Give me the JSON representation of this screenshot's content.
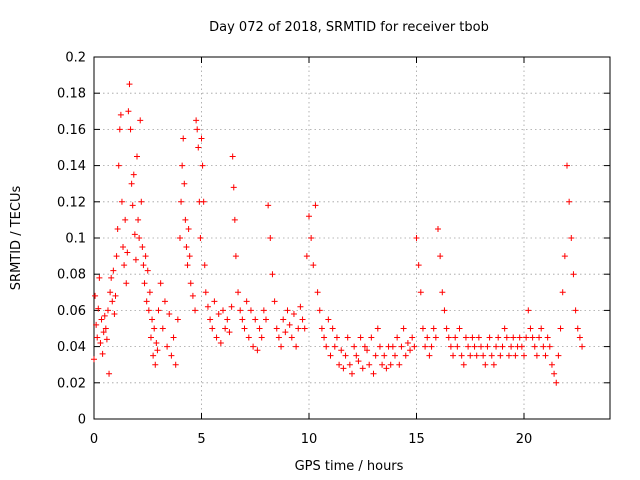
{
  "chart_data": {
    "type": "scatter",
    "title": "Day 072 of 2018, SRMTID for receiver tbob",
    "xlabel": "GPS time / hours",
    "ylabel": "SRMTID / TECUs",
    "xlim": [
      0,
      24
    ],
    "ylim": [
      0,
      0.2
    ],
    "xticks": [
      0,
      5,
      10,
      15,
      20
    ],
    "xtick_labels": [
      "0",
      "5",
      "10",
      "15",
      "20"
    ],
    "yticks": [
      0,
      0.02,
      0.04,
      0.06,
      0.08,
      0.1,
      0.12,
      0.14,
      0.16,
      0.18,
      0.2
    ],
    "ytick_labels": [
      "0",
      "0.02",
      "0.04",
      "0.06",
      "0.08",
      "0.1",
      "0.12",
      "0.14",
      "0.16",
      "0.18",
      "0.2"
    ],
    "grid": true,
    "marker": "+",
    "color": "#ff0000",
    "series": [
      {
        "name": "SRMTID",
        "x": [
          0.0,
          0.05,
          0.1,
          0.15,
          0.2,
          0.25,
          0.3,
          0.35,
          0.4,
          0.45,
          0.5,
          0.55,
          0.6,
          0.65,
          0.7,
          0.75,
          0.8,
          0.85,
          0.9,
          0.95,
          1.0,
          1.05,
          1.1,
          1.15,
          1.2,
          1.25,
          1.3,
          1.35,
          1.4,
          1.45,
          1.5,
          1.55,
          1.6,
          1.65,
          1.7,
          1.75,
          1.8,
          1.85,
          1.9,
          1.95,
          2.0,
          2.05,
          2.1,
          2.15,
          2.2,
          2.25,
          2.3,
          2.35,
          2.4,
          2.45,
          2.5,
          2.55,
          2.6,
          2.65,
          2.7,
          2.75,
          2.8,
          2.85,
          2.9,
          2.95,
          3.0,
          3.1,
          3.2,
          3.3,
          3.4,
          3.5,
          3.6,
          3.7,
          3.8,
          3.9,
          4.0,
          4.05,
          4.1,
          4.15,
          4.2,
          4.25,
          4.3,
          4.35,
          4.4,
          4.45,
          4.5,
          4.6,
          4.7,
          4.75,
          4.8,
          4.85,
          4.9,
          4.95,
          5.0,
          5.05,
          5.1,
          5.15,
          5.2,
          5.3,
          5.4,
          5.5,
          5.6,
          5.7,
          5.8,
          5.9,
          6.0,
          6.1,
          6.2,
          6.3,
          6.4,
          6.45,
          6.5,
          6.55,
          6.6,
          6.7,
          6.8,
          6.9,
          7.0,
          7.1,
          7.2,
          7.3,
          7.4,
          7.5,
          7.6,
          7.7,
          7.8,
          7.9,
          8.0,
          8.1,
          8.2,
          8.3,
          8.4,
          8.5,
          8.6,
          8.7,
          8.8,
          8.9,
          9.0,
          9.1,
          9.2,
          9.3,
          9.4,
          9.5,
          9.6,
          9.7,
          9.8,
          9.9,
          10.0,
          10.1,
          10.2,
          10.3,
          10.4,
          10.5,
          10.6,
          10.7,
          10.8,
          10.9,
          11.0,
          11.1,
          11.2,
          11.3,
          11.4,
          11.5,
          11.6,
          11.7,
          11.8,
          11.9,
          12.0,
          12.1,
          12.2,
          12.3,
          12.4,
          12.5,
          12.6,
          12.7,
          12.8,
          12.9,
          13.0,
          13.1,
          13.2,
          13.3,
          13.4,
          13.5,
          13.6,
          13.7,
          13.8,
          13.9,
          14.0,
          14.1,
          14.2,
          14.3,
          14.4,
          14.5,
          14.6,
          14.7,
          14.8,
          14.9,
          15.0,
          15.1,
          15.2,
          15.3,
          15.4,
          15.5,
          15.6,
          15.7,
          15.8,
          15.9,
          16.0,
          16.1,
          16.2,
          16.3,
          16.4,
          16.5,
          16.6,
          16.7,
          16.8,
          16.9,
          17.0,
          17.1,
          17.2,
          17.3,
          17.4,
          17.5,
          17.6,
          17.7,
          17.8,
          17.9,
          18.0,
          18.1,
          18.2,
          18.3,
          18.4,
          18.5,
          18.6,
          18.7,
          18.8,
          18.9,
          19.0,
          19.1,
          19.2,
          19.3,
          19.4,
          19.5,
          19.6,
          19.7,
          19.8,
          19.9,
          20.0,
          20.1,
          20.2,
          20.3,
          20.4,
          20.5,
          20.6,
          20.7,
          20.8,
          20.9,
          21.0,
          21.1,
          21.2,
          21.3,
          21.4,
          21.5,
          21.6,
          21.7,
          21.8,
          21.9,
          22.0,
          22.1,
          22.2,
          22.3,
          22.4,
          22.5,
          22.6,
          22.7
        ],
        "y": [
          0.033,
          0.068,
          0.052,
          0.045,
          0.061,
          0.078,
          0.042,
          0.055,
          0.036,
          0.048,
          0.057,
          0.05,
          0.044,
          0.06,
          0.025,
          0.07,
          0.078,
          0.065,
          0.082,
          0.058,
          0.068,
          0.09,
          0.105,
          0.14,
          0.16,
          0.168,
          0.12,
          0.095,
          0.085,
          0.11,
          0.075,
          0.092,
          0.17,
          0.185,
          0.16,
          0.13,
          0.118,
          0.135,
          0.102,
          0.088,
          0.145,
          0.11,
          0.1,
          0.165,
          0.12,
          0.095,
          0.085,
          0.075,
          0.09,
          0.065,
          0.082,
          0.06,
          0.07,
          0.045,
          0.055,
          0.035,
          0.05,
          0.03,
          0.042,
          0.038,
          0.06,
          0.075,
          0.05,
          0.065,
          0.04,
          0.058,
          0.035,
          0.045,
          0.03,
          0.055,
          0.1,
          0.12,
          0.14,
          0.155,
          0.13,
          0.11,
          0.095,
          0.085,
          0.105,
          0.09,
          0.075,
          0.068,
          0.06,
          0.165,
          0.16,
          0.15,
          0.12,
          0.1,
          0.155,
          0.14,
          0.12,
          0.085,
          0.07,
          0.062,
          0.055,
          0.05,
          0.065,
          0.045,
          0.058,
          0.042,
          0.06,
          0.05,
          0.055,
          0.048,
          0.062,
          0.145,
          0.128,
          0.11,
          0.09,
          0.07,
          0.06,
          0.055,
          0.05,
          0.065,
          0.045,
          0.06,
          0.04,
          0.055,
          0.038,
          0.05,
          0.045,
          0.06,
          0.055,
          0.118,
          0.1,
          0.08,
          0.065,
          0.05,
          0.045,
          0.04,
          0.055,
          0.048,
          0.06,
          0.052,
          0.045,
          0.058,
          0.04,
          0.05,
          0.062,
          0.055,
          0.05,
          0.09,
          0.112,
          0.1,
          0.085,
          0.118,
          0.07,
          0.06,
          0.05,
          0.045,
          0.04,
          0.055,
          0.035,
          0.05,
          0.04,
          0.045,
          0.03,
          0.038,
          0.028,
          0.035,
          0.045,
          0.03,
          0.025,
          0.04,
          0.035,
          0.032,
          0.045,
          0.028,
          0.04,
          0.038,
          0.03,
          0.045,
          0.025,
          0.035,
          0.05,
          0.04,
          0.03,
          0.035,
          0.028,
          0.04,
          0.03,
          0.04,
          0.035,
          0.045,
          0.03,
          0.04,
          0.05,
          0.035,
          0.042,
          0.038,
          0.045,
          0.04,
          0.1,
          0.085,
          0.07,
          0.05,
          0.04,
          0.045,
          0.035,
          0.04,
          0.05,
          0.045,
          0.105,
          0.09,
          0.07,
          0.06,
          0.05,
          0.045,
          0.04,
          0.035,
          0.045,
          0.04,
          0.05,
          0.035,
          0.03,
          0.045,
          0.04,
          0.035,
          0.045,
          0.04,
          0.035,
          0.045,
          0.04,
          0.035,
          0.03,
          0.04,
          0.045,
          0.035,
          0.03,
          0.04,
          0.045,
          0.035,
          0.04,
          0.05,
          0.045,
          0.035,
          0.04,
          0.045,
          0.035,
          0.04,
          0.045,
          0.04,
          0.035,
          0.045,
          0.06,
          0.05,
          0.045,
          0.04,
          0.035,
          0.045,
          0.05,
          0.04,
          0.035,
          0.045,
          0.04,
          0.03,
          0.025,
          0.02,
          0.035,
          0.05,
          0.07,
          0.09,
          0.14,
          0.12,
          0.1,
          0.08,
          0.06,
          0.05,
          0.045,
          0.04
        ]
      }
    ]
  }
}
